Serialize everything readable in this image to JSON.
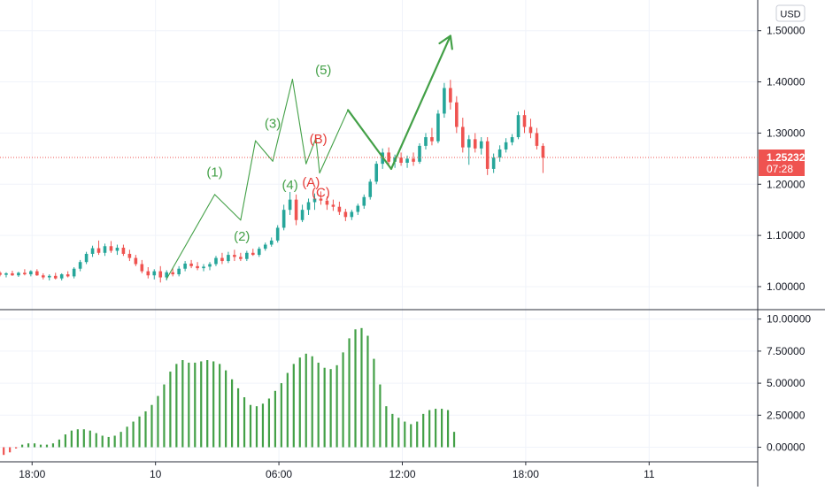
{
  "currency_badge": "USD",
  "price_axis": {
    "ticks": [
      "1.50000",
      "1.40000",
      "1.30000",
      "1.20000",
      "1.10000",
      "1.00000"
    ],
    "tick_values": [
      1.5,
      1.4,
      1.3,
      1.2,
      1.1,
      1.0
    ],
    "ylim": [
      0.955,
      1.56
    ]
  },
  "indicator_axis": {
    "ticks": [
      "10.00000",
      "7.50000",
      "5.00000",
      "2.50000",
      "0.00000"
    ],
    "tick_values": [
      10,
      7.5,
      5,
      2.5,
      0
    ],
    "ylim": [
      -1.0,
      10.6
    ]
  },
  "time_axis": {
    "labels": [
      "18:00",
      "10",
      "06:00",
      "12:00",
      "18:00",
      "11"
    ],
    "label_hours": [
      18,
      28,
      38,
      48,
      58,
      68
    ],
    "xlim": [
      15.4,
      76.8
    ]
  },
  "current_price": {
    "price_label": "1.25232",
    "countdown_label": "07:28",
    "value": 1.25232
  },
  "colors": {
    "up": "#26a69a",
    "down": "#ef5350",
    "wave_green": "#43a047",
    "wave_red": "#e53935",
    "histogram": "#43a047",
    "histogram_negative": "#ef5350",
    "axis_text": "#131722",
    "grid": "#f0f3fa",
    "price_line": "#ef5350"
  },
  "wave_labels": {
    "impulse": [
      {
        "label": "(1)",
        "hour": 32.8,
        "price": 1.215
      },
      {
        "label": "(2)",
        "hour": 35.0,
        "price": 1.09
      },
      {
        "label": "(3)",
        "hour": 37.5,
        "price": 1.31
      },
      {
        "label": "(4)",
        "hour": 38.9,
        "price": 1.19
      },
      {
        "label": "(5)",
        "hour": 41.6,
        "price": 1.415
      }
    ],
    "correction": [
      {
        "label": "(A)",
        "hour": 40.6,
        "price": 1.195
      },
      {
        "label": "(B)",
        "hour": 41.2,
        "price": 1.28
      },
      {
        "label": "(C)",
        "hour": 41.4,
        "price": 1.175
      }
    ]
  },
  "chart_data": [
    {
      "type": "candlestick",
      "title": "",
      "xlabel": "",
      "ylabel": "",
      "x_unit": "hours from start of the 9th",
      "grid": true,
      "ylim": [
        0.955,
        1.56
      ],
      "current_price": 1.25232,
      "candles": [
        [
          15.4,
          1.027,
          1.03,
          1.02,
          1.023
        ],
        [
          15.9,
          1.023,
          1.028,
          1.018,
          1.026
        ],
        [
          16.4,
          1.026,
          1.031,
          1.021,
          1.022
        ],
        [
          16.9,
          1.022,
          1.029,
          1.019,
          1.027
        ],
        [
          17.4,
          1.027,
          1.034,
          1.022,
          1.024
        ],
        [
          17.9,
          1.024,
          1.032,
          1.02,
          1.03
        ],
        [
          18.4,
          1.03,
          1.034,
          1.021,
          1.022
        ],
        [
          18.9,
          1.022,
          1.026,
          1.014,
          1.018
        ],
        [
          19.4,
          1.018,
          1.024,
          1.012,
          1.021
        ],
        [
          19.9,
          1.021,
          1.027,
          1.014,
          1.016
        ],
        [
          20.4,
          1.016,
          1.026,
          1.012,
          1.024
        ],
        [
          20.9,
          1.024,
          1.03,
          1.018,
          1.02
        ],
        [
          21.4,
          1.02,
          1.038,
          1.016,
          1.035
        ],
        [
          21.9,
          1.035,
          1.052,
          1.03,
          1.048
        ],
        [
          22.4,
          1.048,
          1.068,
          1.044,
          1.064
        ],
        [
          22.9,
          1.064,
          1.08,
          1.058,
          1.075
        ],
        [
          23.4,
          1.075,
          1.09,
          1.062,
          1.066
        ],
        [
          23.9,
          1.066,
          1.084,
          1.06,
          1.079
        ],
        [
          24.4,
          1.079,
          1.089,
          1.066,
          1.07
        ],
        [
          24.9,
          1.07,
          1.082,
          1.062,
          1.076
        ],
        [
          25.4,
          1.076,
          1.082,
          1.06,
          1.064
        ],
        [
          25.9,
          1.064,
          1.072,
          1.05,
          1.056
        ],
        [
          26.4,
          1.056,
          1.062,
          1.04,
          1.044
        ],
        [
          26.9,
          1.044,
          1.052,
          1.026,
          1.03
        ],
        [
          27.4,
          1.03,
          1.038,
          1.016,
          1.022
        ],
        [
          27.9,
          1.022,
          1.034,
          1.014,
          1.03
        ],
        [
          28.4,
          1.03,
          1.04,
          1.008,
          1.018
        ],
        [
          28.9,
          1.018,
          1.032,
          1.012,
          1.028
        ],
        [
          29.4,
          1.028,
          1.036,
          1.02,
          1.024
        ],
        [
          29.9,
          1.024,
          1.04,
          1.02,
          1.035
        ],
        [
          30.4,
          1.035,
          1.05,
          1.03,
          1.045
        ],
        [
          30.9,
          1.045,
          1.052,
          1.036,
          1.04
        ],
        [
          31.4,
          1.04,
          1.048,
          1.032,
          1.036
        ],
        [
          31.9,
          1.036,
          1.044,
          1.03,
          1.039
        ],
        [
          32.4,
          1.039,
          1.048,
          1.032,
          1.044
        ],
        [
          32.9,
          1.044,
          1.06,
          1.04,
          1.056
        ],
        [
          33.4,
          1.056,
          1.066,
          1.044,
          1.05
        ],
        [
          33.9,
          1.05,
          1.068,
          1.046,
          1.062
        ],
        [
          34.4,
          1.062,
          1.072,
          1.05,
          1.058
        ],
        [
          34.9,
          1.058,
          1.066,
          1.05,
          1.054
        ],
        [
          35.4,
          1.054,
          1.07,
          1.05,
          1.066
        ],
        [
          35.9,
          1.066,
          1.074,
          1.06,
          1.062
        ],
        [
          36.4,
          1.062,
          1.078,
          1.058,
          1.074
        ],
        [
          36.9,
          1.074,
          1.086,
          1.07,
          1.082
        ],
        [
          37.4,
          1.082,
          1.096,
          1.078,
          1.09
        ],
        [
          37.9,
          1.09,
          1.12,
          1.086,
          1.115
        ],
        [
          38.4,
          1.115,
          1.16,
          1.11,
          1.15
        ],
        [
          38.9,
          1.15,
          1.185,
          1.14,
          1.17
        ],
        [
          39.4,
          1.17,
          1.18,
          1.12,
          1.13
        ],
        [
          39.9,
          1.13,
          1.16,
          1.126,
          1.15
        ],
        [
          40.4,
          1.15,
          1.172,
          1.14,
          1.165
        ],
        [
          40.9,
          1.165,
          1.182,
          1.15,
          1.172
        ],
        [
          41.4,
          1.172,
          1.186,
          1.16,
          1.168
        ],
        [
          41.9,
          1.168,
          1.176,
          1.15,
          1.16
        ],
        [
          42.4,
          1.16,
          1.17,
          1.148,
          1.156
        ],
        [
          42.9,
          1.156,
          1.166,
          1.14,
          1.146
        ],
        [
          43.4,
          1.146,
          1.152,
          1.128,
          1.136
        ],
        [
          43.9,
          1.136,
          1.15,
          1.13,
          1.146
        ],
        [
          44.4,
          1.146,
          1.162,
          1.14,
          1.158
        ],
        [
          44.9,
          1.158,
          1.18,
          1.152,
          1.175
        ],
        [
          45.4,
          1.175,
          1.21,
          1.17,
          1.205
        ],
        [
          45.9,
          1.205,
          1.245,
          1.2,
          1.24
        ],
        [
          46.4,
          1.24,
          1.27,
          1.23,
          1.262
        ],
        [
          46.9,
          1.262,
          1.272,
          1.238,
          1.244
        ],
        [
          47.4,
          1.244,
          1.258,
          1.232,
          1.252
        ],
        [
          47.9,
          1.252,
          1.262,
          1.236,
          1.242
        ],
        [
          48.4,
          1.242,
          1.256,
          1.232,
          1.25
        ],
        [
          48.9,
          1.25,
          1.262,
          1.236,
          1.244
        ],
        [
          49.4,
          1.244,
          1.28,
          1.24,
          1.275
        ],
        [
          49.9,
          1.275,
          1.3,
          1.268,
          1.292
        ],
        [
          50.4,
          1.292,
          1.31,
          1.276,
          1.284
        ],
        [
          50.9,
          1.284,
          1.345,
          1.28,
          1.338
        ],
        [
          51.4,
          1.338,
          1.398,
          1.33,
          1.388
        ],
        [
          51.9,
          1.388,
          1.404,
          1.346,
          1.36
        ],
        [
          52.4,
          1.36,
          1.372,
          1.3,
          1.312
        ],
        [
          52.9,
          1.312,
          1.33,
          1.262,
          1.272
        ],
        [
          53.4,
          1.272,
          1.296,
          1.238,
          1.288
        ],
        [
          53.9,
          1.288,
          1.3,
          1.262,
          1.27
        ],
        [
          54.4,
          1.27,
          1.292,
          1.258,
          1.284
        ],
        [
          54.9,
          1.284,
          1.292,
          1.218,
          1.23
        ],
        [
          55.4,
          1.23,
          1.26,
          1.222,
          1.252
        ],
        [
          55.9,
          1.252,
          1.276,
          1.244,
          1.268
        ],
        [
          56.4,
          1.268,
          1.29,
          1.262,
          1.282
        ],
        [
          56.9,
          1.282,
          1.298,
          1.276,
          1.292
        ],
        [
          57.4,
          1.292,
          1.342,
          1.288,
          1.335
        ],
        [
          57.9,
          1.335,
          1.345,
          1.3,
          1.312
        ],
        [
          58.4,
          1.312,
          1.328,
          1.29,
          1.3
        ],
        [
          58.9,
          1.3,
          1.31,
          1.268,
          1.275
        ],
        [
          59.4,
          1.275,
          1.28,
          1.222,
          1.252
        ]
      ],
      "wave_paths": [
        {
          "color": "#43a047",
          "width": 1,
          "points": [
            [
              28.9,
              1.015
            ],
            [
              32.8,
              1.18
            ],
            [
              34.9,
              1.13
            ],
            [
              36.1,
              1.285
            ],
            [
              37.5,
              1.245
            ],
            [
              39.1,
              1.405
            ],
            [
              40.2,
              1.24
            ],
            [
              41.0,
              1.29
            ],
            [
              41.3,
              1.222
            ],
            [
              43.6,
              1.345
            ],
            [
              47.1,
              1.23
            ],
            [
              51.9,
              1.49
            ]
          ]
        }
      ],
      "arrow_tip": [
        51.9,
        1.49
      ]
    },
    {
      "type": "bar",
      "title": "",
      "ylim": [
        -1.0,
        10.6
      ],
      "x_start": 0.2,
      "x_step": 0.5,
      "values": [
        0.8,
        1.0,
        1.2,
        1.3,
        1.4,
        1.4,
        1.4,
        1.3,
        1.2,
        1.0,
        0.9,
        0.8,
        0.7,
        0.9,
        1.6,
        2.6,
        3.4,
        3.9,
        4.1,
        4.1,
        4.0,
        3.6,
        3.1,
        2.5,
        1.8,
        1.0,
        0.2,
        -0.4,
        -0.6,
        -0.7,
        -0.7,
        -0.6,
        -0.4,
        -0.1,
        0.2,
        0.3,
        0.3,
        0.2,
        0.2,
        0.3,
        0.6,
        1.0,
        1.3,
        1.4,
        1.4,
        1.3,
        1.1,
        0.9,
        0.8,
        0.9,
        1.2,
        1.6,
        2.0,
        2.4,
        2.8,
        3.3,
        4.0,
        4.9,
        5.9,
        6.5,
        6.8,
        6.6,
        6.6,
        6.7,
        6.8,
        6.7,
        6.5,
        6.0,
        5.3,
        4.6,
        3.9,
        3.3,
        3.2,
        3.4,
        3.8,
        4.4,
        5.0,
        5.8,
        6.5,
        7.0,
        7.3,
        7.1,
        6.6,
        6.2,
        6.1,
        6.4,
        7.4,
        8.5,
        9.2,
        9.3,
        8.7,
        6.9,
        4.9,
        3.2,
        2.6,
        2.3,
        2.0,
        1.8,
        2.0,
        2.6,
        2.9,
        3.0,
        3.0,
        2.9,
        1.2
      ]
    }
  ]
}
